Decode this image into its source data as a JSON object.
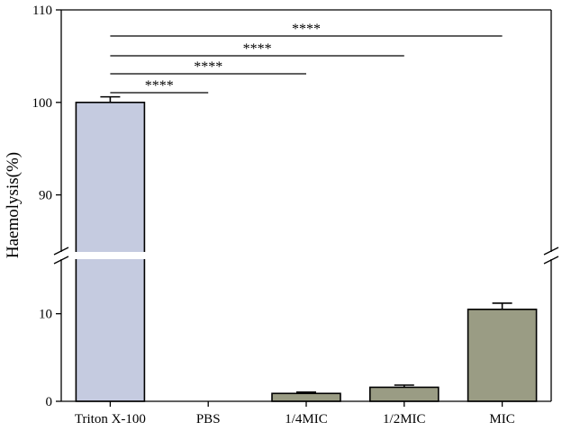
{
  "chart_data": {
    "type": "bar",
    "title": "",
    "xlabel": "",
    "ylabel": "Haemolysis(%)",
    "categories": [
      "Triton X-100",
      "PBS",
      "1/4MIC",
      "1/2MIC",
      "MIC"
    ],
    "values": [
      100.0,
      0.0,
      0.9,
      1.6,
      10.5
    ],
    "errors": [
      0.6,
      0.0,
      0.15,
      0.25,
      0.7
    ],
    "bar_colors": [
      "#c5cbe0",
      "#9a9c84",
      "#9a9c84",
      "#9a9c84",
      "#9a9c84"
    ],
    "y_axis_break": {
      "lower_range": [
        0,
        15
      ],
      "upper_range": [
        85,
        110
      ],
      "lower_ticks": [
        0,
        10
      ],
      "upper_ticks": [
        90,
        100,
        110
      ]
    },
    "significance": [
      {
        "from": "Triton X-100",
        "to": "PBS",
        "label": "****"
      },
      {
        "from": "Triton X-100",
        "to": "1/4MIC",
        "label": "****"
      },
      {
        "from": "Triton X-100",
        "to": "1/2MIC",
        "label": "****"
      },
      {
        "from": "Triton X-100",
        "to": "MIC",
        "label": "****"
      }
    ]
  }
}
